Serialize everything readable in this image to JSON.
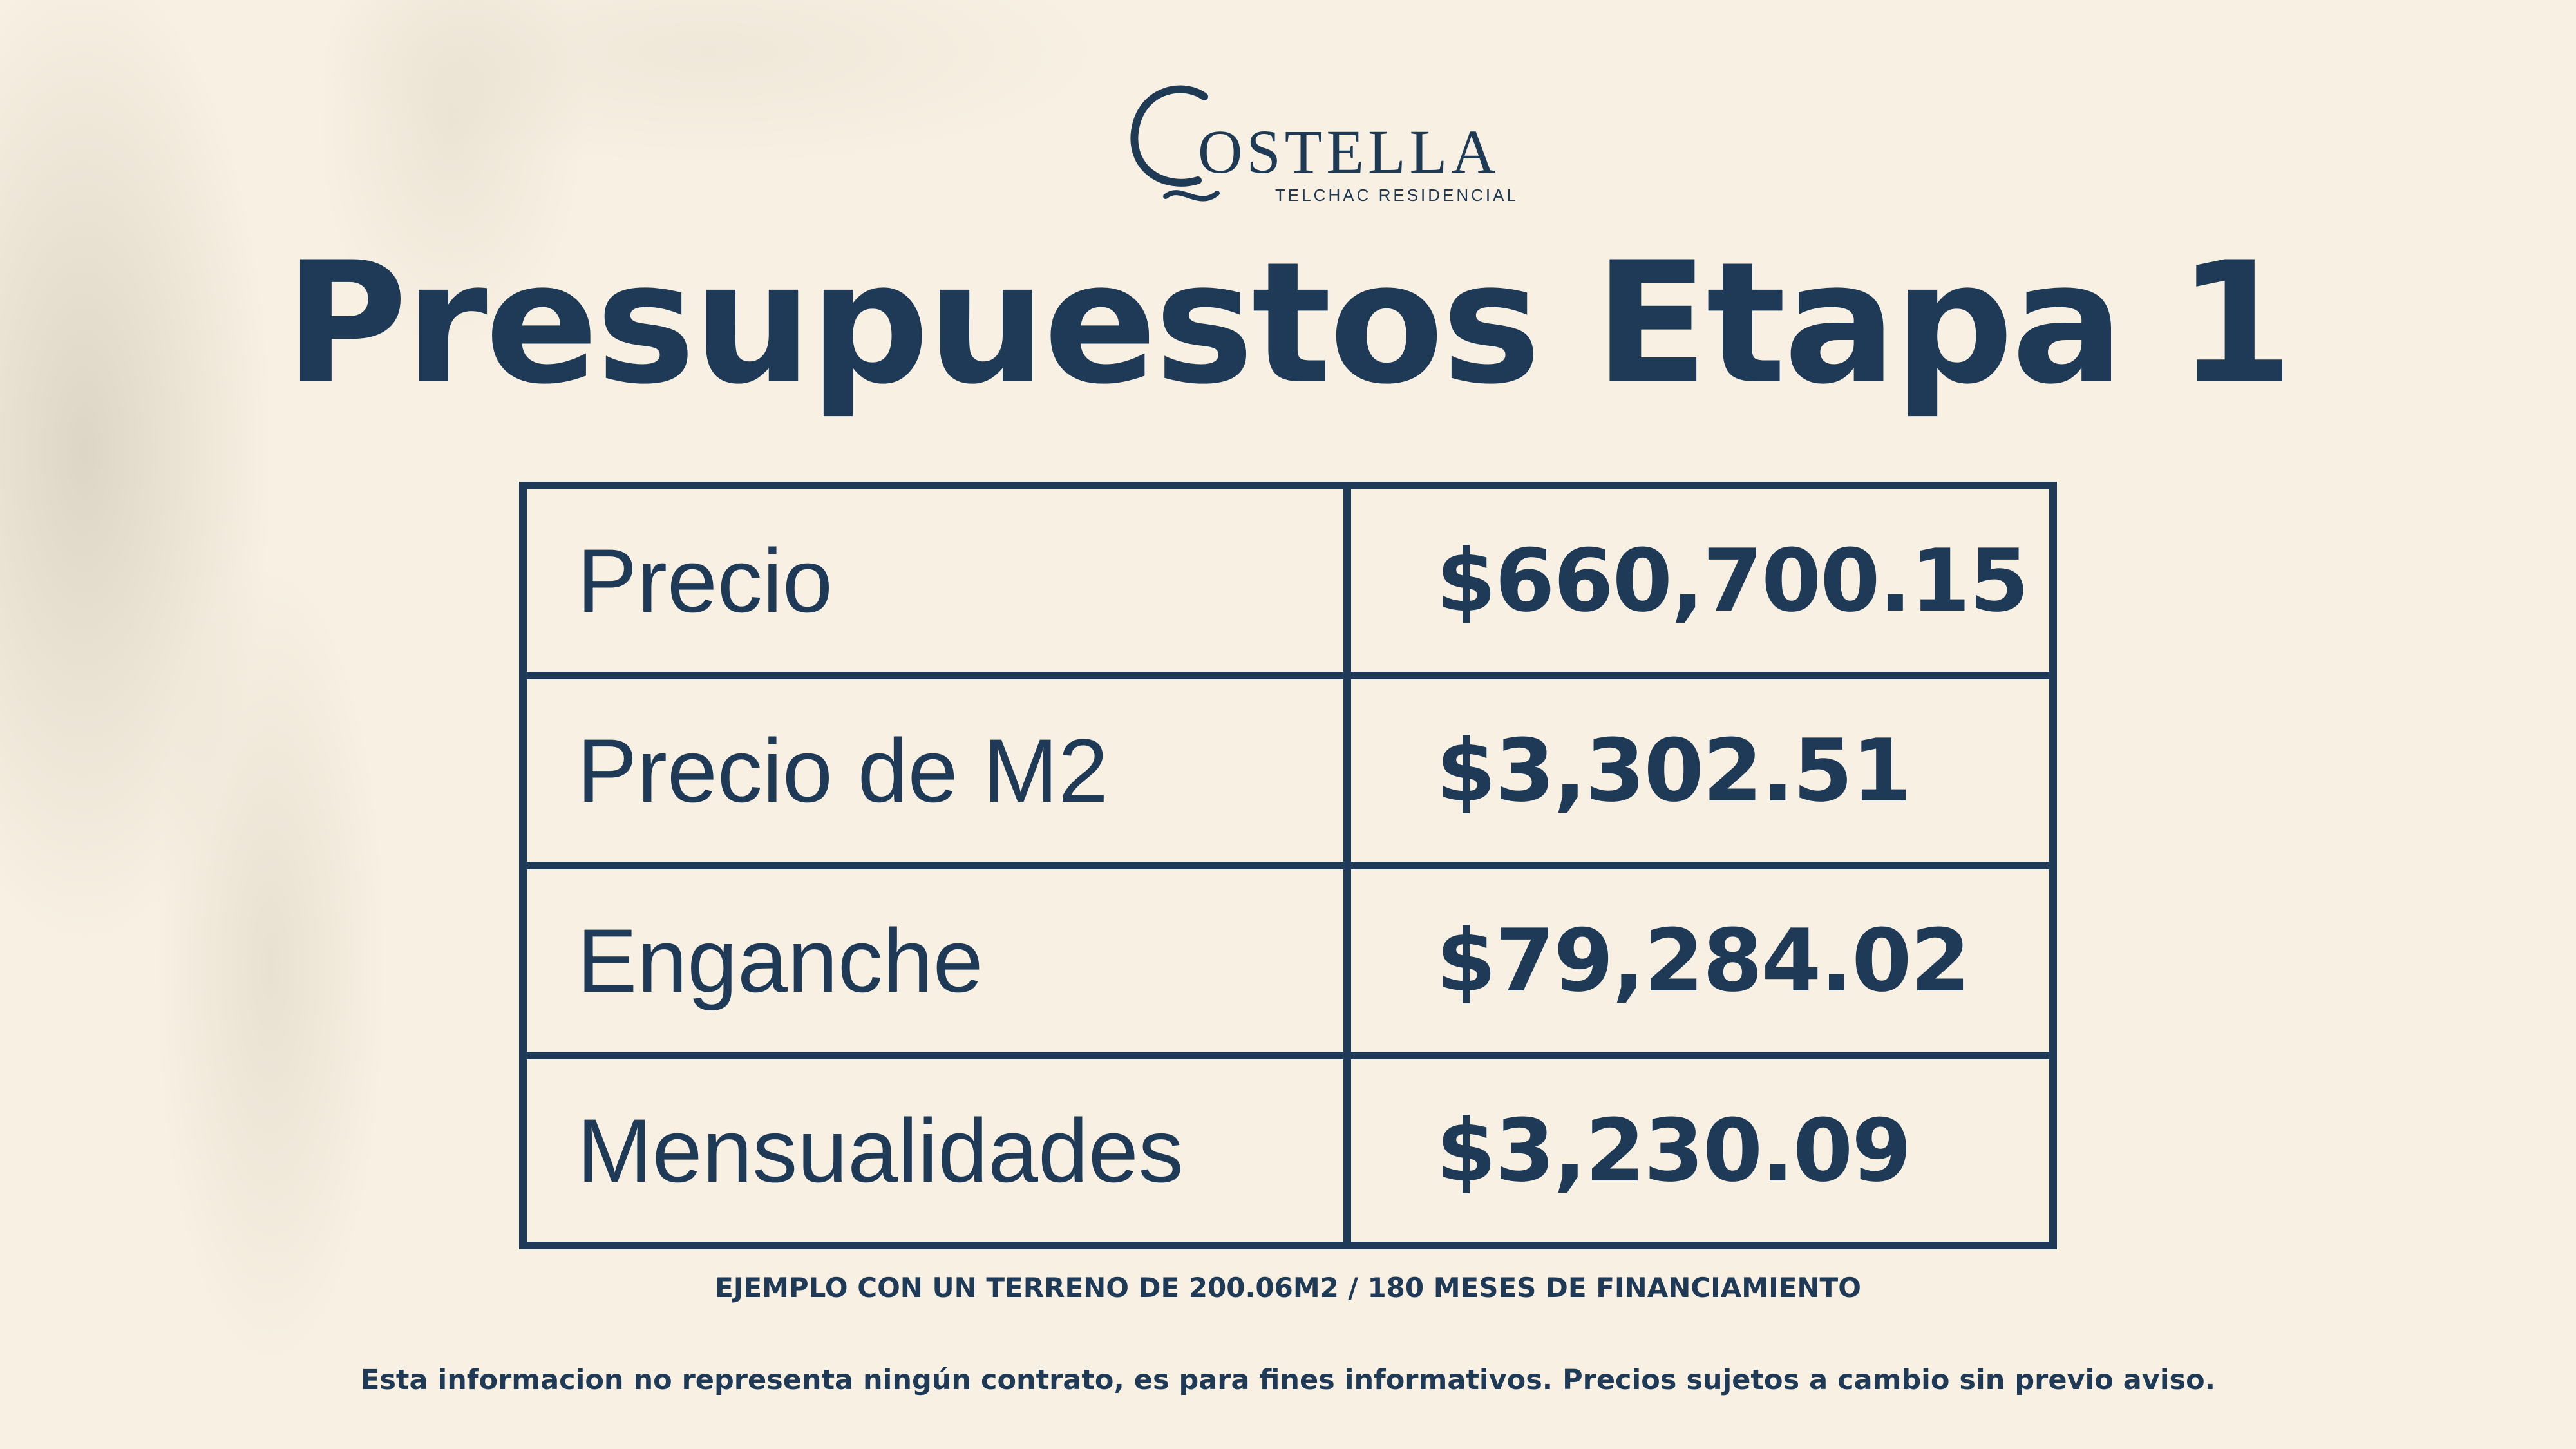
{
  "logo": {
    "name": "OSTELLA",
    "initial": "C",
    "subtitle": "TELCHAC RESIDENCIAL"
  },
  "title": "Presupuestos Etapa 1",
  "table": {
    "rows": [
      {
        "label": "Precio",
        "value": "$660,700.15"
      },
      {
        "label": "Precio de M2",
        "value": "$3,302.51"
      },
      {
        "label": "Enganche",
        "value": "$79,284.02"
      },
      {
        "label": "Mensualidades",
        "value": "$3,230.09"
      }
    ]
  },
  "note": "EJEMPLO CON UN TERRENO DE 200.06M2 / 180 MESES DE FINANCIAMIENTO",
  "disclaimer": "Esta informacion no representa ningún contrato, es para fines informativos. Precios sujetos a cambio sin previo aviso.",
  "colors": {
    "background": "#f8f1e3",
    "navy": "#1e3a56"
  }
}
